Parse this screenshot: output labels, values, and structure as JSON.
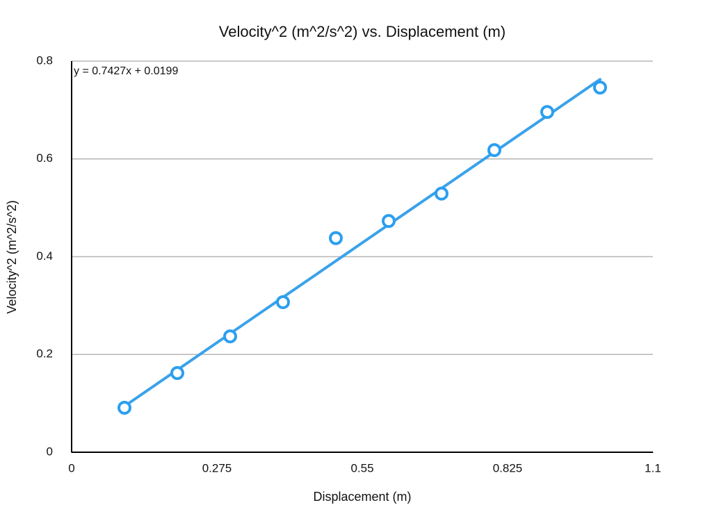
{
  "chart_data": {
    "type": "scatter",
    "title": "Velocity^2 (m^2/s^2) vs. Displacement (m)",
    "x_label": "Displacement (m)",
    "y_label": "Velocity^2 (m^2/s^2)",
    "xlim": [
      0,
      1.1
    ],
    "xticks": [
      0,
      0.275,
      0.55,
      0.825,
      1.1
    ],
    "ylim": [
      0,
      0.8
    ],
    "yticks": [
      0,
      0.2,
      0.4,
      0.6,
      0.8
    ],
    "grid": true,
    "series": [
      {
        "color": "#2b9ff0",
        "x": [
          0.1,
          0.2,
          0.3,
          0.4,
          0.5,
          0.6,
          0.7,
          0.8,
          0.9,
          1.0
        ],
        "values": [
          0.091,
          0.162,
          0.237,
          0.307,
          0.438,
          0.473,
          0.529,
          0.618,
          0.696,
          0.746
        ]
      }
    ],
    "trendline": {
      "label": "y = 0.7427x + 0.0199",
      "slope": 0.7427,
      "intercept": 0.0199,
      "color": "#3aa2ea"
    }
  }
}
